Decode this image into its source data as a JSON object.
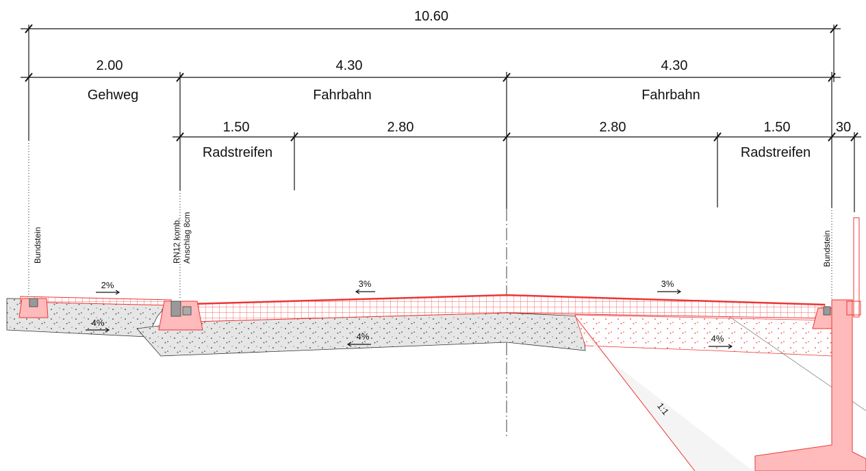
{
  "dimensions": [
    "10.60",
    "2.00",
    "4.30",
    "4.30",
    "1.50",
    "2.80",
    "2.80",
    "1.50",
    "30"
  ],
  "zones": [
    "Gehweg",
    "Fahrbahn",
    "Fahrbahn",
    "Radstreifen",
    "Radstreifen"
  ],
  "annotations": [
    "Bundstein",
    "RN12 komb.",
    "Anschlag 8cm",
    "Bundstein"
  ],
  "slopes": [
    "2%",
    "4%",
    "3%",
    "4%",
    "3%",
    "4%",
    "1:1"
  ]
}
